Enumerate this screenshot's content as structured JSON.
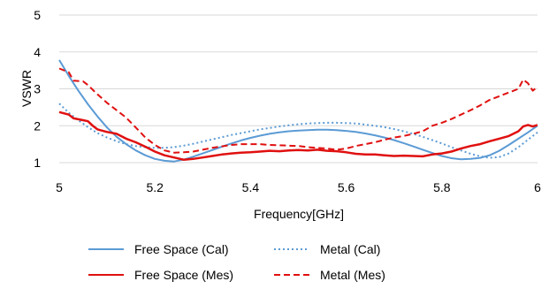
{
  "chart_data": {
    "type": "line",
    "xlabel": "Frequency[GHz]",
    "ylabel": "VSWR",
    "xlim": [
      5,
      6
    ],
    "ylim": [
      1,
      5
    ],
    "x_ticks": [
      5,
      5.2,
      5.4,
      5.6,
      5.8,
      6
    ],
    "x_tick_labels": [
      "5",
      "5.2",
      "5.4",
      "5.6",
      "5.8",
      "6"
    ],
    "y_ticks": [
      1,
      2,
      3,
      4,
      5
    ],
    "y_tick_labels": [
      "1",
      "2",
      "3",
      "4",
      "5"
    ],
    "grid": "horizontal",
    "legend_position": "bottom",
    "series": [
      {
        "name": "Free Space (Cal)",
        "color": "#5b9bd5",
        "style": "solid",
        "points": [
          [
            5.0,
            3.78
          ],
          [
            5.02,
            3.35
          ],
          [
            5.04,
            2.95
          ],
          [
            5.06,
            2.58
          ],
          [
            5.08,
            2.25
          ],
          [
            5.1,
            1.95
          ],
          [
            5.12,
            1.7
          ],
          [
            5.14,
            1.5
          ],
          [
            5.16,
            1.33
          ],
          [
            5.18,
            1.2
          ],
          [
            5.2,
            1.1
          ],
          [
            5.22,
            1.05
          ],
          [
            5.24,
            1.03
          ],
          [
            5.26,
            1.08
          ],
          [
            5.28,
            1.16
          ],
          [
            5.3,
            1.25
          ],
          [
            5.32,
            1.34
          ],
          [
            5.34,
            1.43
          ],
          [
            5.36,
            1.52
          ],
          [
            5.38,
            1.6
          ],
          [
            5.4,
            1.67
          ],
          [
            5.42,
            1.73
          ],
          [
            5.44,
            1.78
          ],
          [
            5.46,
            1.82
          ],
          [
            5.48,
            1.85
          ],
          [
            5.5,
            1.87
          ],
          [
            5.52,
            1.88
          ],
          [
            5.54,
            1.89
          ],
          [
            5.56,
            1.89
          ],
          [
            5.58,
            1.88
          ],
          [
            5.6,
            1.86
          ],
          [
            5.62,
            1.83
          ],
          [
            5.64,
            1.79
          ],
          [
            5.66,
            1.74
          ],
          [
            5.68,
            1.68
          ],
          [
            5.7,
            1.61
          ],
          [
            5.72,
            1.53
          ],
          [
            5.74,
            1.44
          ],
          [
            5.76,
            1.35
          ],
          [
            5.78,
            1.26
          ],
          [
            5.8,
            1.18
          ],
          [
            5.82,
            1.12
          ],
          [
            5.84,
            1.09
          ],
          [
            5.86,
            1.1
          ],
          [
            5.88,
            1.13
          ],
          [
            5.9,
            1.2
          ],
          [
            5.92,
            1.32
          ],
          [
            5.94,
            1.48
          ],
          [
            5.96,
            1.65
          ],
          [
            5.98,
            1.82
          ],
          [
            6.0,
            2.0
          ]
        ]
      },
      {
        "name": "Metal (Cal)",
        "color": "#5b9bd5",
        "style": "dotted",
        "points": [
          [
            5.0,
            2.6
          ],
          [
            5.02,
            2.35
          ],
          [
            5.04,
            2.15
          ],
          [
            5.06,
            1.96
          ],
          [
            5.08,
            1.8
          ],
          [
            5.1,
            1.68
          ],
          [
            5.12,
            1.58
          ],
          [
            5.14,
            1.5
          ],
          [
            5.16,
            1.45
          ],
          [
            5.18,
            1.42
          ],
          [
            5.2,
            1.4
          ],
          [
            5.22,
            1.4
          ],
          [
            5.24,
            1.42
          ],
          [
            5.26,
            1.46
          ],
          [
            5.28,
            1.51
          ],
          [
            5.3,
            1.57
          ],
          [
            5.32,
            1.63
          ],
          [
            5.34,
            1.69
          ],
          [
            5.36,
            1.75
          ],
          [
            5.38,
            1.8
          ],
          [
            5.4,
            1.85
          ],
          [
            5.42,
            1.9
          ],
          [
            5.44,
            1.94
          ],
          [
            5.46,
            1.98
          ],
          [
            5.48,
            2.01
          ],
          [
            5.5,
            2.04
          ],
          [
            5.52,
            2.06
          ],
          [
            5.54,
            2.07
          ],
          [
            5.56,
            2.08
          ],
          [
            5.58,
            2.08
          ],
          [
            5.6,
            2.07
          ],
          [
            5.62,
            2.06
          ],
          [
            5.64,
            2.03
          ],
          [
            5.66,
            2.0
          ],
          [
            5.68,
            1.96
          ],
          [
            5.7,
            1.91
          ],
          [
            5.72,
            1.85
          ],
          [
            5.74,
            1.78
          ],
          [
            5.76,
            1.7
          ],
          [
            5.78,
            1.61
          ],
          [
            5.8,
            1.52
          ],
          [
            5.82,
            1.42
          ],
          [
            5.84,
            1.33
          ],
          [
            5.86,
            1.24
          ],
          [
            5.88,
            1.17
          ],
          [
            5.9,
            1.13
          ],
          [
            5.92,
            1.15
          ],
          [
            5.94,
            1.25
          ],
          [
            5.96,
            1.42
          ],
          [
            5.98,
            1.62
          ],
          [
            6.0,
            1.82
          ]
        ]
      },
      {
        "name": "Free Space (Mes)",
        "color": "#e01010",
        "style": "solid",
        "points": [
          [
            5.0,
            2.37
          ],
          [
            5.02,
            2.3
          ],
          [
            5.03,
            2.2
          ],
          [
            5.05,
            2.15
          ],
          [
            5.06,
            2.12
          ],
          [
            5.07,
            2.0
          ],
          [
            5.08,
            1.9
          ],
          [
            5.1,
            1.83
          ],
          [
            5.12,
            1.78
          ],
          [
            5.14,
            1.65
          ],
          [
            5.16,
            1.55
          ],
          [
            5.18,
            1.43
          ],
          [
            5.2,
            1.3
          ],
          [
            5.22,
            1.2
          ],
          [
            5.24,
            1.14
          ],
          [
            5.26,
            1.08
          ],
          [
            5.28,
            1.1
          ],
          [
            5.3,
            1.14
          ],
          [
            5.32,
            1.18
          ],
          [
            5.34,
            1.22
          ],
          [
            5.36,
            1.25
          ],
          [
            5.38,
            1.27
          ],
          [
            5.4,
            1.28
          ],
          [
            5.42,
            1.3
          ],
          [
            5.44,
            1.32
          ],
          [
            5.46,
            1.31
          ],
          [
            5.48,
            1.33
          ],
          [
            5.5,
            1.34
          ],
          [
            5.52,
            1.33
          ],
          [
            5.54,
            1.35
          ],
          [
            5.56,
            1.32
          ],
          [
            5.58,
            1.31
          ],
          [
            5.6,
            1.28
          ],
          [
            5.62,
            1.24
          ],
          [
            5.64,
            1.22
          ],
          [
            5.66,
            1.22
          ],
          [
            5.68,
            1.2
          ],
          [
            5.7,
            1.18
          ],
          [
            5.72,
            1.19
          ],
          [
            5.74,
            1.18
          ],
          [
            5.76,
            1.17
          ],
          [
            5.78,
            1.22
          ],
          [
            5.8,
            1.25
          ],
          [
            5.82,
            1.3
          ],
          [
            5.84,
            1.38
          ],
          [
            5.86,
            1.45
          ],
          [
            5.88,
            1.5
          ],
          [
            5.9,
            1.58
          ],
          [
            5.92,
            1.65
          ],
          [
            5.94,
            1.72
          ],
          [
            5.96,
            1.85
          ],
          [
            5.97,
            1.98
          ],
          [
            5.98,
            2.02
          ],
          [
            5.99,
            1.98
          ],
          [
            6.0,
            2.02
          ]
        ]
      },
      {
        "name": "Metal (Mes)",
        "color": "#e01010",
        "style": "dashed",
        "points": [
          [
            5.0,
            3.55
          ],
          [
            5.02,
            3.45
          ],
          [
            5.03,
            3.22
          ],
          [
            5.05,
            3.2
          ],
          [
            5.06,
            3.1
          ],
          [
            5.08,
            2.85
          ],
          [
            5.1,
            2.62
          ],
          [
            5.12,
            2.42
          ],
          [
            5.14,
            2.22
          ],
          [
            5.16,
            1.95
          ],
          [
            5.18,
            1.68
          ],
          [
            5.2,
            1.48
          ],
          [
            5.22,
            1.33
          ],
          [
            5.24,
            1.27
          ],
          [
            5.26,
            1.28
          ],
          [
            5.28,
            1.3
          ],
          [
            5.3,
            1.35
          ],
          [
            5.32,
            1.4
          ],
          [
            5.34,
            1.44
          ],
          [
            5.36,
            1.48
          ],
          [
            5.38,
            1.5
          ],
          [
            5.4,
            1.5
          ],
          [
            5.42,
            1.5
          ],
          [
            5.44,
            1.48
          ],
          [
            5.46,
            1.47
          ],
          [
            5.48,
            1.46
          ],
          [
            5.5,
            1.45
          ],
          [
            5.52,
            1.42
          ],
          [
            5.54,
            1.4
          ],
          [
            5.56,
            1.38
          ],
          [
            5.58,
            1.35
          ],
          [
            5.6,
            1.38
          ],
          [
            5.62,
            1.45
          ],
          [
            5.64,
            1.5
          ],
          [
            5.66,
            1.55
          ],
          [
            5.68,
            1.62
          ],
          [
            5.7,
            1.68
          ],
          [
            5.72,
            1.72
          ],
          [
            5.74,
            1.78
          ],
          [
            5.76,
            1.85
          ],
          [
            5.78,
            2.0
          ],
          [
            5.8,
            2.08
          ],
          [
            5.82,
            2.18
          ],
          [
            5.84,
            2.3
          ],
          [
            5.86,
            2.42
          ],
          [
            5.88,
            2.55
          ],
          [
            5.9,
            2.7
          ],
          [
            5.92,
            2.8
          ],
          [
            5.94,
            2.9
          ],
          [
            5.96,
            3.0
          ],
          [
            5.97,
            3.25
          ],
          [
            5.98,
            3.15
          ],
          [
            5.99,
            2.95
          ],
          [
            6.0,
            3.05
          ]
        ]
      }
    ]
  }
}
